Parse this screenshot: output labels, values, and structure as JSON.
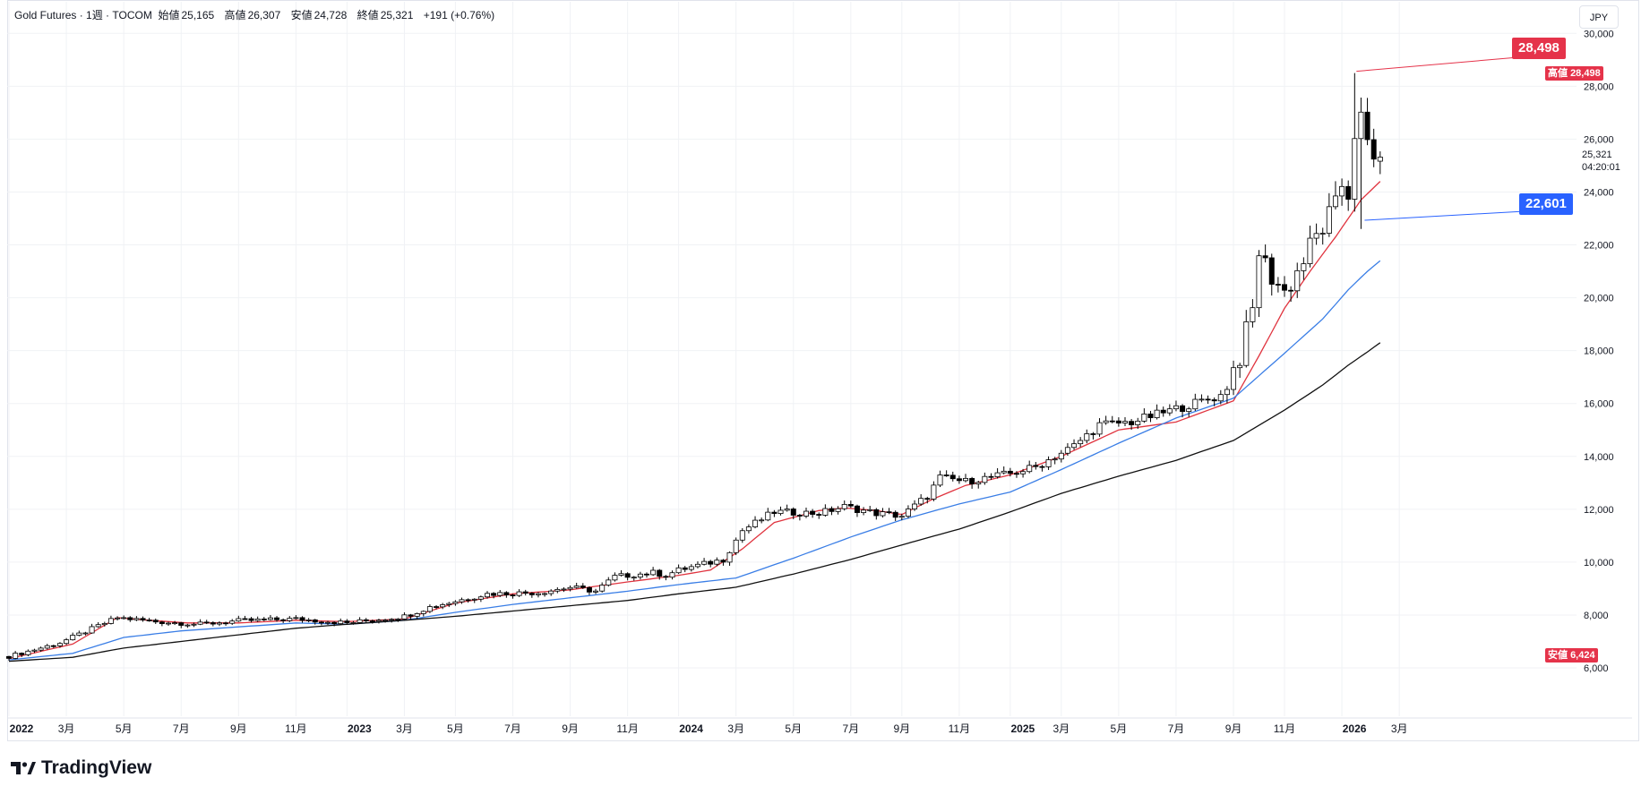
{
  "header": {
    "symbol": "Gold Futures · 1週 · TOCOM",
    "open_label": "始値",
    "open": "25,165",
    "high_label": "高値",
    "high": "26,307",
    "low_label": "安値",
    "low": "24,728",
    "close_label": "終値",
    "close": "25,321",
    "change": "+191 (+0.76%)"
  },
  "currency": "JPY",
  "brand": "TradingView",
  "colors": {
    "up": "#ffffff",
    "down": "#000000",
    "candle_outline": "#000000",
    "ma_fast": "#e0343f",
    "ma_mid": "#3a7ee6",
    "ma_slow": "#111111",
    "high_tag": "#e5334a",
    "low_tag": "#e5334a",
    "blue_tag": "#2962ff",
    "grid": "#f0f2f5"
  },
  "annotations": {
    "high_callout": "28,498",
    "low_callout": "22,601",
    "high_axis_label": "高値",
    "high_axis_value": "28,498",
    "low_axis_label": "安値",
    "low_axis_value": "6,424",
    "last_price": "25,321",
    "countdown": "04:20:01"
  },
  "chart_data": {
    "type": "candlestick",
    "title": "Gold Futures · 1週 · TOCOM",
    "xlabel": "",
    "ylabel": "",
    "ylim": [
      4000,
      30000
    ],
    "x_ticks": [
      {
        "label": "2022",
        "week": 0,
        "bold": true
      },
      {
        "label": "3月",
        "week": 9
      },
      {
        "label": "5月",
        "week": 18
      },
      {
        "label": "7月",
        "week": 27
      },
      {
        "label": "9月",
        "week": 36
      },
      {
        "label": "11月",
        "week": 45
      },
      {
        "label": "2023",
        "week": 53,
        "bold": true
      },
      {
        "label": "3月",
        "week": 62
      },
      {
        "label": "5月",
        "week": 70
      },
      {
        "label": "7月",
        "week": 79
      },
      {
        "label": "9月",
        "week": 88
      },
      {
        "label": "11月",
        "week": 97
      },
      {
        "label": "2024",
        "week": 105,
        "bold": true
      },
      {
        "label": "3月",
        "week": 114
      },
      {
        "label": "5月",
        "week": 123
      },
      {
        "label": "7月",
        "week": 132
      },
      {
        "label": "9月",
        "week": 140
      },
      {
        "label": "11月",
        "week": 149
      },
      {
        "label": "2025",
        "week": 157,
        "bold": true
      },
      {
        "label": "3月",
        "week": 165
      },
      {
        "label": "5月",
        "week": 174
      },
      {
        "label": "7月",
        "week": 183
      },
      {
        "label": "9月",
        "week": 192
      },
      {
        "label": "11月",
        "week": 200
      },
      {
        "label": "2026",
        "week": 209,
        "bold": true
      },
      {
        "label": "3月",
        "week": 218
      }
    ],
    "y_ticks": [
      "6,000",
      "8,000",
      "10,000",
      "12,000",
      "14,000",
      "16,000",
      "18,000",
      "20,000",
      "22,000",
      "24,000",
      "26,000",
      "28,000",
      "30,000"
    ],
    "series": [
      {
        "name": "close_anchors",
        "week": [
          0,
          8,
          17,
          23,
          30,
          36,
          45,
          53,
          62,
          66,
          75,
          83,
          88,
          92,
          95,
          97,
          101,
          103,
          105,
          112,
          115,
          120,
          127,
          131,
          136,
          140,
          144,
          146,
          150,
          157,
          161,
          167,
          171,
          176,
          183,
          190,
          193,
          195,
          196,
          197,
          200,
          202,
          206,
          208,
          209,
          210,
          211,
          212,
          213,
          214,
          215
        ],
        "values": [
          6430,
          6950,
          7900,
          7750,
          7650,
          7780,
          7850,
          7700,
          7950,
          8300,
          8800,
          8850,
          9050,
          8900,
          9450,
          9500,
          9600,
          9500,
          9700,
          10100,
          11200,
          11900,
          11850,
          12100,
          11850,
          11750,
          12500,
          13200,
          13050,
          13350,
          13600,
          14400,
          15200,
          15300,
          15800,
          16300,
          17800,
          19500,
          21800,
          21200,
          20200,
          21000,
          22700,
          23300,
          24300,
          24000,
          26400,
          26600,
          25600,
          25130,
          25321
        ]
      },
      {
        "name": "MA fast (red)",
        "week": [
          0,
          10,
          17,
          22,
          28,
          36,
          45,
          53,
          62,
          70,
          79,
          88,
          97,
          105,
          110,
          115,
          120,
          127,
          131,
          136,
          140,
          145,
          150,
          157,
          165,
          174,
          183,
          192,
          196,
          200,
          204,
          208,
          212,
          215
        ],
        "values": [
          6350,
          6900,
          7900,
          7800,
          7700,
          7700,
          7800,
          7750,
          7850,
          8450,
          8800,
          8950,
          9250,
          9500,
          9700,
          10500,
          11500,
          11950,
          12050,
          11950,
          11800,
          12400,
          12900,
          13300,
          14000,
          15000,
          15300,
          16100,
          17800,
          19600,
          21000,
          22300,
          23700,
          24400
        ]
      },
      {
        "name": "MA mid (blue)",
        "week": [
          0,
          10,
          18,
          27,
          36,
          45,
          53,
          62,
          70,
          79,
          88,
          97,
          105,
          114,
          123,
          132,
          140,
          149,
          157,
          165,
          174,
          183,
          192,
          200,
          206,
          210,
          213,
          215
        ],
        "values": [
          6300,
          6550,
          7150,
          7400,
          7550,
          7700,
          7650,
          7800,
          8100,
          8400,
          8650,
          8900,
          9150,
          9400,
          10150,
          10950,
          11600,
          12200,
          12650,
          13500,
          14500,
          15450,
          16200,
          17900,
          19200,
          20300,
          21000,
          21400
        ]
      },
      {
        "name": "MA slow (black)",
        "week": [
          0,
          10,
          18,
          27,
          36,
          45,
          53,
          62,
          70,
          79,
          88,
          97,
          105,
          114,
          123,
          132,
          140,
          149,
          157,
          165,
          174,
          183,
          192,
          200,
          206,
          210,
          213,
          215
        ],
        "values": [
          6250,
          6400,
          6750,
          7000,
          7250,
          7500,
          7650,
          7800,
          7950,
          8150,
          8350,
          8550,
          8800,
          9050,
          9550,
          10100,
          10650,
          11250,
          11900,
          12600,
          13250,
          13850,
          14600,
          15750,
          16700,
          17450,
          17950,
          18300
        ]
      }
    ]
  }
}
